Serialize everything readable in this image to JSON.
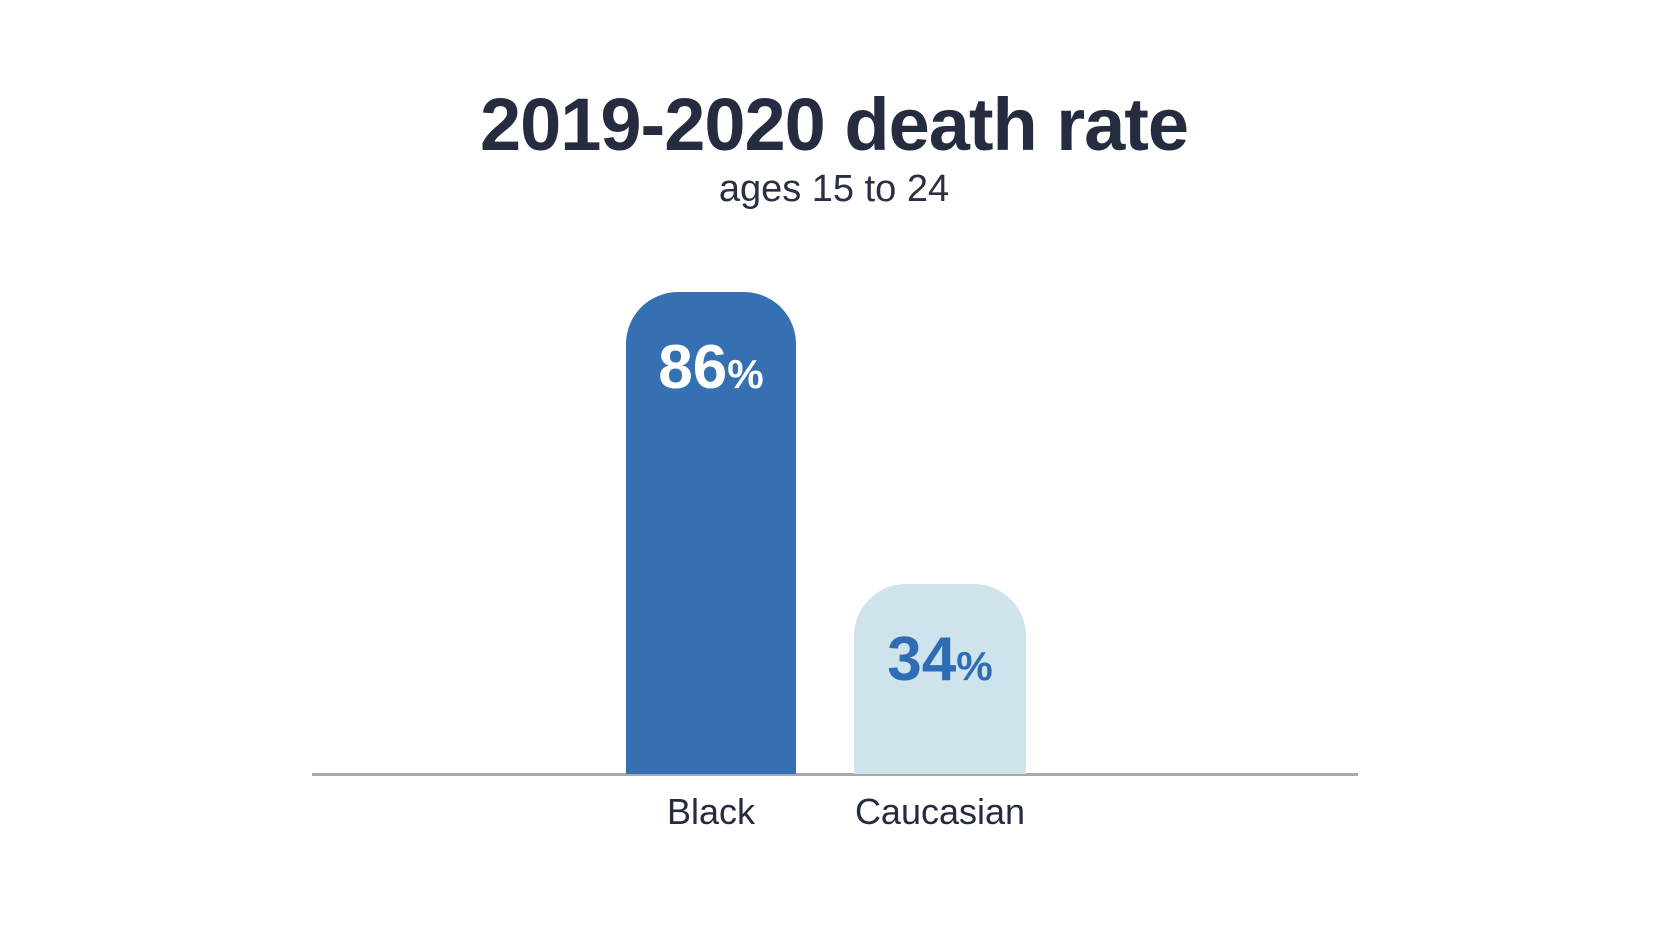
{
  "title": "2019-2020 death rate",
  "subtitle": "ages 15 to 24",
  "chart_data": {
    "type": "bar",
    "title": "2019-2020 death rate",
    "subtitle": "ages 15 to 24",
    "categories": [
      "Black",
      "Caucasian"
    ],
    "values": [
      86,
      34
    ],
    "value_suffix": "%",
    "xlabel": "",
    "ylabel": "",
    "ylim": [
      0,
      100
    ],
    "grid": false,
    "legend": "none",
    "background_color": "#ffffff",
    "text_color": "#262c40",
    "axis_line_color": "#a6a9ac",
    "bar_colors": [
      "#3570b2",
      "#cee3ec"
    ],
    "value_label_colors": [
      "#ffffff",
      "#2e6cb3"
    ]
  }
}
